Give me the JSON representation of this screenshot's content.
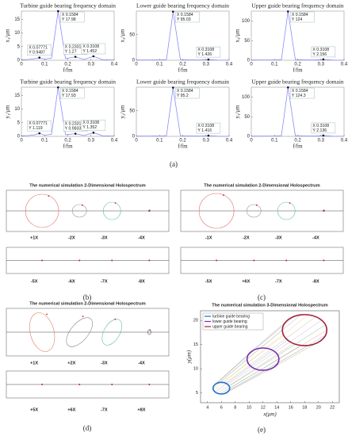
{
  "chart_data": [
    {
      "type": "line",
      "title": "Turbine guide bearing frequency domain",
      "x_label": "f/fm",
      "y_label": "x₁/μm",
      "x": [
        0,
        0.03,
        0.06,
        0.07771,
        0.1,
        0.13,
        0.1584,
        0.19,
        0.2331,
        0.27,
        0.3108,
        0.35,
        0.4
      ],
      "values": [
        0.2,
        0.3,
        0.6,
        0.9487,
        0.4,
        0.8,
        17.98,
        0.6,
        1.27,
        0.3,
        1.452,
        0.2,
        0.1
      ],
      "color": "#8a8aff",
      "xlim": [
        0,
        0.4
      ],
      "xticks": [
        0,
        0.1,
        0.2,
        0.3,
        0.4
      ],
      "ylim": [
        0,
        18
      ],
      "yticks": [
        0,
        5,
        10,
        15
      ],
      "datatips": [
        {
          "x": 0.07771,
          "y": 0.9487,
          "label": [
            "X 0.07771",
            "Y 0.9487"
          ]
        },
        {
          "x": 0.1584,
          "y": 17.98,
          "label": [
            "X 0.1584",
            "Y 17.98"
          ]
        },
        {
          "x": 0.2331,
          "y": 1.27,
          "label": [
            "X 0.2331",
            "Y 1.27"
          ]
        },
        {
          "x": 0.3108,
          "y": 1.452,
          "label": [
            "X 0.3108",
            "Y 1.452"
          ]
        }
      ]
    },
    {
      "type": "line",
      "title": "Lower guide bearing frequency domain",
      "x_label": "f/fm",
      "y_label": "x₂/μm",
      "x": [
        0,
        0.03,
        0.06,
        0.07771,
        0.1,
        0.13,
        0.1584,
        0.19,
        0.2331,
        0.27,
        0.3108,
        0.35,
        0.4
      ],
      "values": [
        0.5,
        0.5,
        0.6,
        0.7,
        0.6,
        1.5,
        95.03,
        1.2,
        0.8,
        0.5,
        1.426,
        0.3,
        0.2
      ],
      "color": "#8a8aff",
      "xlim": [
        0,
        0.4
      ],
      "xticks": [
        0,
        0.1,
        0.2,
        0.3,
        0.4
      ],
      "ylim": [
        0,
        96
      ],
      "yticks": [
        0,
        50
      ],
      "datatips": [
        {
          "x": 0.1584,
          "y": 95.03,
          "label": [
            "X 0.1584",
            "Y 95.03"
          ]
        },
        {
          "x": 0.3108,
          "y": 1.426,
          "label": [
            "X 0.3108",
            "Y 1.426"
          ]
        }
      ]
    },
    {
      "type": "line",
      "title": "Upper guide bearing frequency domain",
      "x_label": "f/fm",
      "y_label": "x₃/μm",
      "x": [
        0,
        0.03,
        0.06,
        0.07771,
        0.1,
        0.13,
        0.1584,
        0.19,
        0.2331,
        0.27,
        0.3108,
        0.35,
        0.4
      ],
      "values": [
        0.6,
        0.6,
        0.7,
        0.8,
        0.7,
        2,
        124,
        1.6,
        1,
        0.6,
        2.156,
        0.4,
        0.3
      ],
      "color": "#8a8aff",
      "xlim": [
        0,
        0.4
      ],
      "xticks": [
        0,
        0.1,
        0.2,
        0.3,
        0.4
      ],
      "ylim": [
        0,
        125
      ],
      "yticks": [
        0,
        50,
        100
      ],
      "datatips": [
        {
          "x": 0.1584,
          "y": 124,
          "label": [
            "X 0.1584",
            "Y 124"
          ]
        },
        {
          "x": 0.3108,
          "y": 2.156,
          "label": [
            "X 0.3108",
            "Y 2.156"
          ]
        }
      ]
    },
    {
      "type": "line",
      "title": "Turbine guide bearing frequency domain",
      "x_label": "f/fm",
      "y_label": "y₁/μm",
      "x": [
        0,
        0.03,
        0.06,
        0.07771,
        0.1,
        0.13,
        0.1584,
        0.19,
        0.2331,
        0.27,
        0.3108,
        0.35,
        0.4
      ],
      "values": [
        0.2,
        0.3,
        0.6,
        1.119,
        0.4,
        0.8,
        17.93,
        0.6,
        0.9833,
        0.3,
        1.352,
        0.2,
        0.1
      ],
      "color": "#8a8aff",
      "xlim": [
        0,
        0.4
      ],
      "xticks": [
        0,
        0.1,
        0.2,
        0.3,
        0.4
      ],
      "ylim": [
        0,
        18
      ],
      "yticks": [
        0,
        5,
        10,
        15
      ],
      "datatips": [
        {
          "x": 0.07771,
          "y": 1.119,
          "label": [
            "X 0.07771",
            "Y 1.119"
          ]
        },
        {
          "x": 0.1584,
          "y": 17.93,
          "label": [
            "X 0.1584",
            "Y 17.93"
          ]
        },
        {
          "x": 0.2331,
          "y": 0.9833,
          "label": [
            "X 0.2331",
            "Y 0.9833"
          ]
        },
        {
          "x": 0.3108,
          "y": 1.352,
          "label": [
            "X 0.3108",
            "Y 1.352"
          ]
        }
      ]
    },
    {
      "type": "line",
      "title": "Lower guide bearing frequency domain",
      "x_label": "f/fm",
      "y_label": "y₂/μm",
      "x": [
        0,
        0.03,
        0.06,
        0.07771,
        0.1,
        0.13,
        0.1584,
        0.19,
        0.2331,
        0.27,
        0.3108,
        0.35,
        0.4
      ],
      "values": [
        0.5,
        0.5,
        0.6,
        0.7,
        0.6,
        1.5,
        95.2,
        1.2,
        0.8,
        0.5,
        1.416,
        0.3,
        0.2
      ],
      "color": "#8a8aff",
      "xlim": [
        0,
        0.4
      ],
      "xticks": [
        0,
        0.1,
        0.2,
        0.3,
        0.4
      ],
      "ylim": [
        0,
        96
      ],
      "yticks": [
        0,
        50
      ],
      "datatips": [
        {
          "x": 0.1584,
          "y": 95.2,
          "label": [
            "X 0.1584",
            "Y 95.2"
          ]
        },
        {
          "x": 0.3108,
          "y": 1.416,
          "label": [
            "X 0.3108",
            "Y 1.416"
          ]
        }
      ]
    },
    {
      "type": "line",
      "title": "Upper guide bearing frequency domain",
      "x_label": "f/fm",
      "y_label": "y₃/μm",
      "x": [
        0,
        0.03,
        0.06,
        0.07771,
        0.1,
        0.13,
        0.1584,
        0.19,
        0.2331,
        0.27,
        0.3108,
        0.35,
        0.4
      ],
      "values": [
        0.6,
        0.6,
        0.7,
        0.8,
        0.7,
        2,
        124.3,
        1.6,
        1,
        0.6,
        2.136,
        0.4,
        0.3
      ],
      "color": "#8a8aff",
      "xlim": [
        0,
        0.4
      ],
      "xticks": [
        0,
        0.1,
        0.2,
        0.3,
        0.4
      ],
      "ylim": [
        0,
        125
      ],
      "yticks": [
        0,
        50,
        100
      ],
      "datatips": [
        {
          "x": 0.1584,
          "y": 124.3,
          "label": [
            "X 0.1584",
            "Y 124.3"
          ]
        },
        {
          "x": 0.3108,
          "y": 2.136,
          "label": [
            "X 0.3108",
            "Y 2.136"
          ]
        }
      ]
    },
    {
      "type": "orbit",
      "title": "The numerical simulation 3-Dimensional Holospectrum",
      "x_label": "x(μm)",
      "y_label": "y(μm)",
      "xlim": [
        3,
        23
      ],
      "xticks": [
        4,
        6,
        8,
        10,
        12,
        14,
        16,
        18,
        20,
        22
      ],
      "ylim": [
        3,
        22
      ],
      "yticks": [
        5,
        10,
        15,
        20
      ],
      "legend": "upper left",
      "series": [
        {
          "name": "turbine guide bearing",
          "color": "#1f6fd0",
          "x": [
            6
          ],
          "y": [
            6
          ],
          "size": [
            1.2
          ]
        },
        {
          "name": "lower guide bearing",
          "color": "#7a2fa8",
          "x": [
            12
          ],
          "y": [
            12
          ],
          "size": [
            2.3
          ]
        },
        {
          "name": "upper guide bearing",
          "color": "#a0203a",
          "x": [
            18
          ],
          "y": [
            18
          ],
          "size": [
            3.2
          ]
        }
      ]
    }
  ],
  "holospectra": [
    {
      "title": "The numerical simulation 2-Dimensional Holospectrum",
      "top_labels": [
        "+1X",
        "-2X",
        "-3X",
        "-4X"
      ],
      "bottom_labels": [
        "-5X",
        "-6X",
        "-7X",
        "-8X"
      ]
    },
    {
      "title": "The numerical simulation 2-Dimensional Holospectrum",
      "top_labels": [
        "-1X",
        "-2X",
        "-3X",
        "-4X"
      ],
      "bottom_labels": [
        "-5X",
        "+6X",
        "-7X",
        "-8X"
      ]
    },
    {
      "title": "The numerical simulation 2-Dimensional Holospectrum",
      "top_labels": [
        "+1X",
        "+2X",
        "-3X",
        "-4X"
      ],
      "bottom_labels": [
        "+5X",
        "+6X",
        "-7X",
        "+8X"
      ]
    }
  ],
  "captions": [
    "(a)",
    "(b)",
    "(c)",
    "(d)",
    "(e)"
  ]
}
